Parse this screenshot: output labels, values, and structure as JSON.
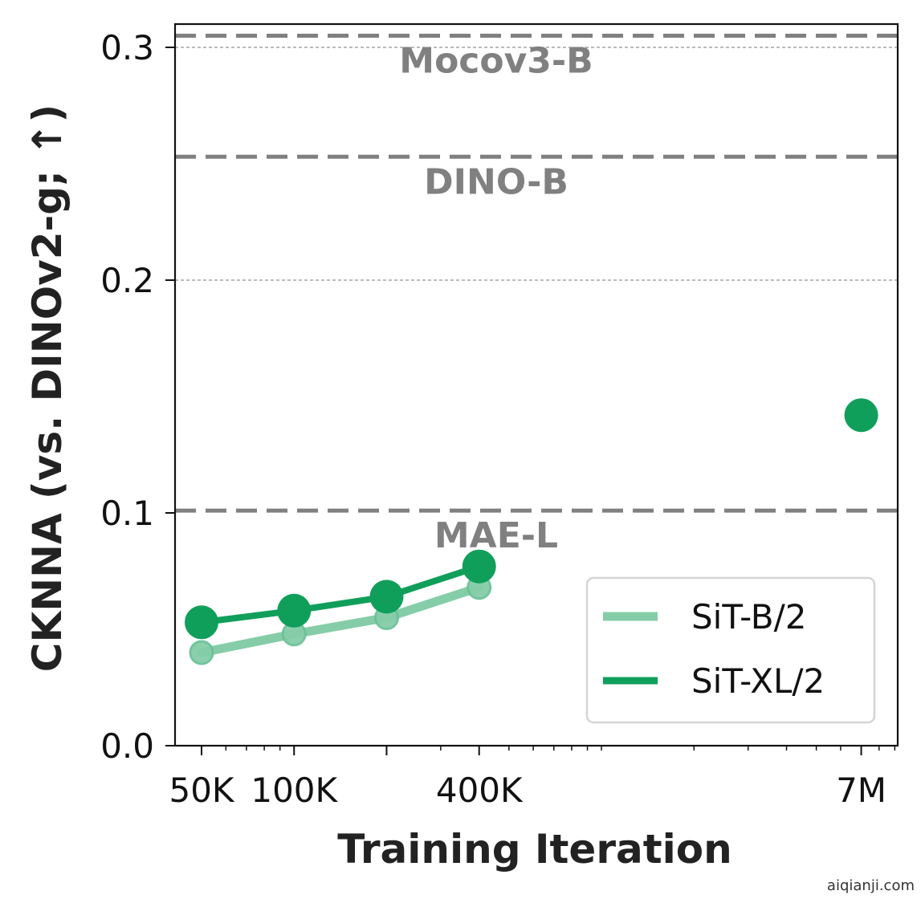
{
  "chart_data": {
    "type": "line",
    "title": "",
    "xlabel": "Training Iteration",
    "ylabel": "CKNNA (vs. DINOv2-g; ↑)",
    "xscale": "log",
    "xlim": [
      41000,
      9200000
    ],
    "ylim": [
      0.0,
      0.31
    ],
    "x_ticks": [
      {
        "value": 50000,
        "label": "50K"
      },
      {
        "value": 100000,
        "label": "100K"
      },
      {
        "value": 400000,
        "label": "400K"
      },
      {
        "value": 7000000,
        "label": "7M"
      }
    ],
    "y_ticks": [
      {
        "value": 0.0,
        "label": "0.0"
      },
      {
        "value": 0.1,
        "label": "0.1"
      },
      {
        "value": 0.2,
        "label": "0.2"
      },
      {
        "value": 0.3,
        "label": "0.3"
      }
    ],
    "gridlines_y": [
      0.2,
      0.3
    ],
    "reference_lines": [
      {
        "name": "Mocov3-B",
        "value": 0.305,
        "color": "#808080"
      },
      {
        "name": "DINO-B",
        "value": 0.253,
        "color": "#808080"
      },
      {
        "name": "MAE-L",
        "value": 0.101,
        "color": "#808080"
      }
    ],
    "series": [
      {
        "name": "SiT-B/2",
        "color": "#85cda8",
        "x": [
          50000,
          100000,
          200000,
          400000
        ],
        "values": [
          0.04,
          0.048,
          0.055,
          0.068
        ]
      },
      {
        "name": "SiT-XL/2",
        "color": "#109f5a",
        "x": [
          50000,
          100000,
          200000,
          400000,
          7000000
        ],
        "values": [
          0.053,
          0.058,
          0.064,
          0.077,
          0.142
        ],
        "connected_points": 4
      }
    ],
    "legend_position": "lower-right"
  },
  "watermark": "aiqianji.com"
}
